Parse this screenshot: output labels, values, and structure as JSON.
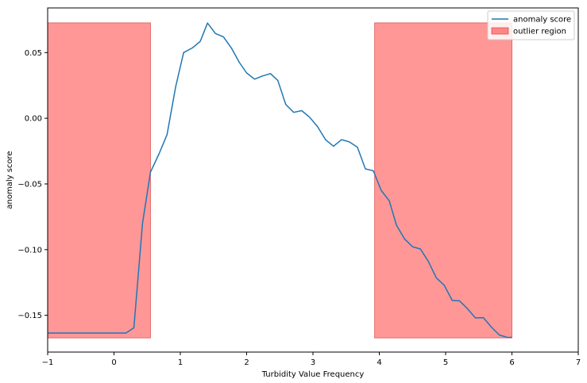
{
  "chart_data": {
    "type": "line",
    "title": "",
    "xlabel": "Turbidity Value Frequency",
    "ylabel": "anomaly score",
    "xlim": [
      -1,
      7
    ],
    "ylim": [
      -0.178,
      0.084
    ],
    "xticks": [
      -1,
      0,
      1,
      2,
      3,
      4,
      5,
      6,
      7
    ],
    "xtick_labels": [
      "−1",
      "0",
      "1",
      "2",
      "3",
      "4",
      "5",
      "6",
      "7"
    ],
    "yticks": [
      0.05,
      0.0,
      -0.05,
      -0.1,
      -0.15
    ],
    "ytick_labels": [
      "0.05",
      "0.00",
      "−0.05",
      "−0.10",
      "−0.15"
    ],
    "grid": false,
    "legend_position": "top-right",
    "series": [
      {
        "name": "anomaly score",
        "color": "#1f77b4",
        "x": [
          -1.0,
          0.18,
          0.3,
          0.43,
          0.55,
          0.68,
          0.8,
          0.93,
          1.05,
          1.18,
          1.3,
          1.41,
          1.53,
          1.65,
          1.77,
          1.89,
          2.0,
          2.12,
          2.24,
          2.36,
          2.47,
          2.59,
          2.71,
          2.83,
          2.95,
          3.07,
          3.19,
          3.31,
          3.43,
          3.55,
          3.67,
          3.79,
          3.91,
          4.03,
          4.15,
          4.26,
          4.38,
          4.5,
          4.62,
          4.74,
          4.86,
          4.98,
          5.1,
          5.21,
          5.33,
          5.45,
          5.57,
          5.69,
          5.81,
          5.93,
          6.0
        ],
        "y": [
          -0.1635,
          -0.1635,
          -0.1595,
          -0.08,
          -0.041,
          -0.027,
          -0.0125,
          0.024,
          0.05,
          0.0535,
          0.0585,
          0.0725,
          0.0645,
          0.062,
          0.0535,
          0.0425,
          0.0345,
          0.0298,
          0.0322,
          0.034,
          0.0288,
          0.0105,
          0.0045,
          0.0058,
          0.0008,
          -0.0065,
          -0.0163,
          -0.0213,
          -0.0163,
          -0.018,
          -0.022,
          -0.0385,
          -0.04,
          -0.055,
          -0.0628,
          -0.0815,
          -0.0918,
          -0.0978,
          -0.0995,
          -0.109,
          -0.1215,
          -0.1272,
          -0.1387,
          -0.139,
          -0.145,
          -0.152,
          -0.1518,
          -0.159,
          -0.165,
          -0.1668,
          -0.1668
        ]
      }
    ],
    "regions": [
      {
        "name": "outlier region",
        "x": [
          -1.0,
          0.55
        ],
        "y": [
          -0.1672,
          0.0726
        ],
        "color": "#ff6b6b"
      },
      {
        "name": "outlier region",
        "x": [
          3.93,
          6.0
        ],
        "y": [
          -0.1672,
          0.0726
        ],
        "color": "#ff6b6b"
      }
    ],
    "legend": [
      {
        "label": "anomaly score",
        "kind": "line",
        "color": "#1f77b4"
      },
      {
        "label": "outlier region",
        "kind": "patch",
        "color": "#ff6b6b"
      }
    ]
  }
}
